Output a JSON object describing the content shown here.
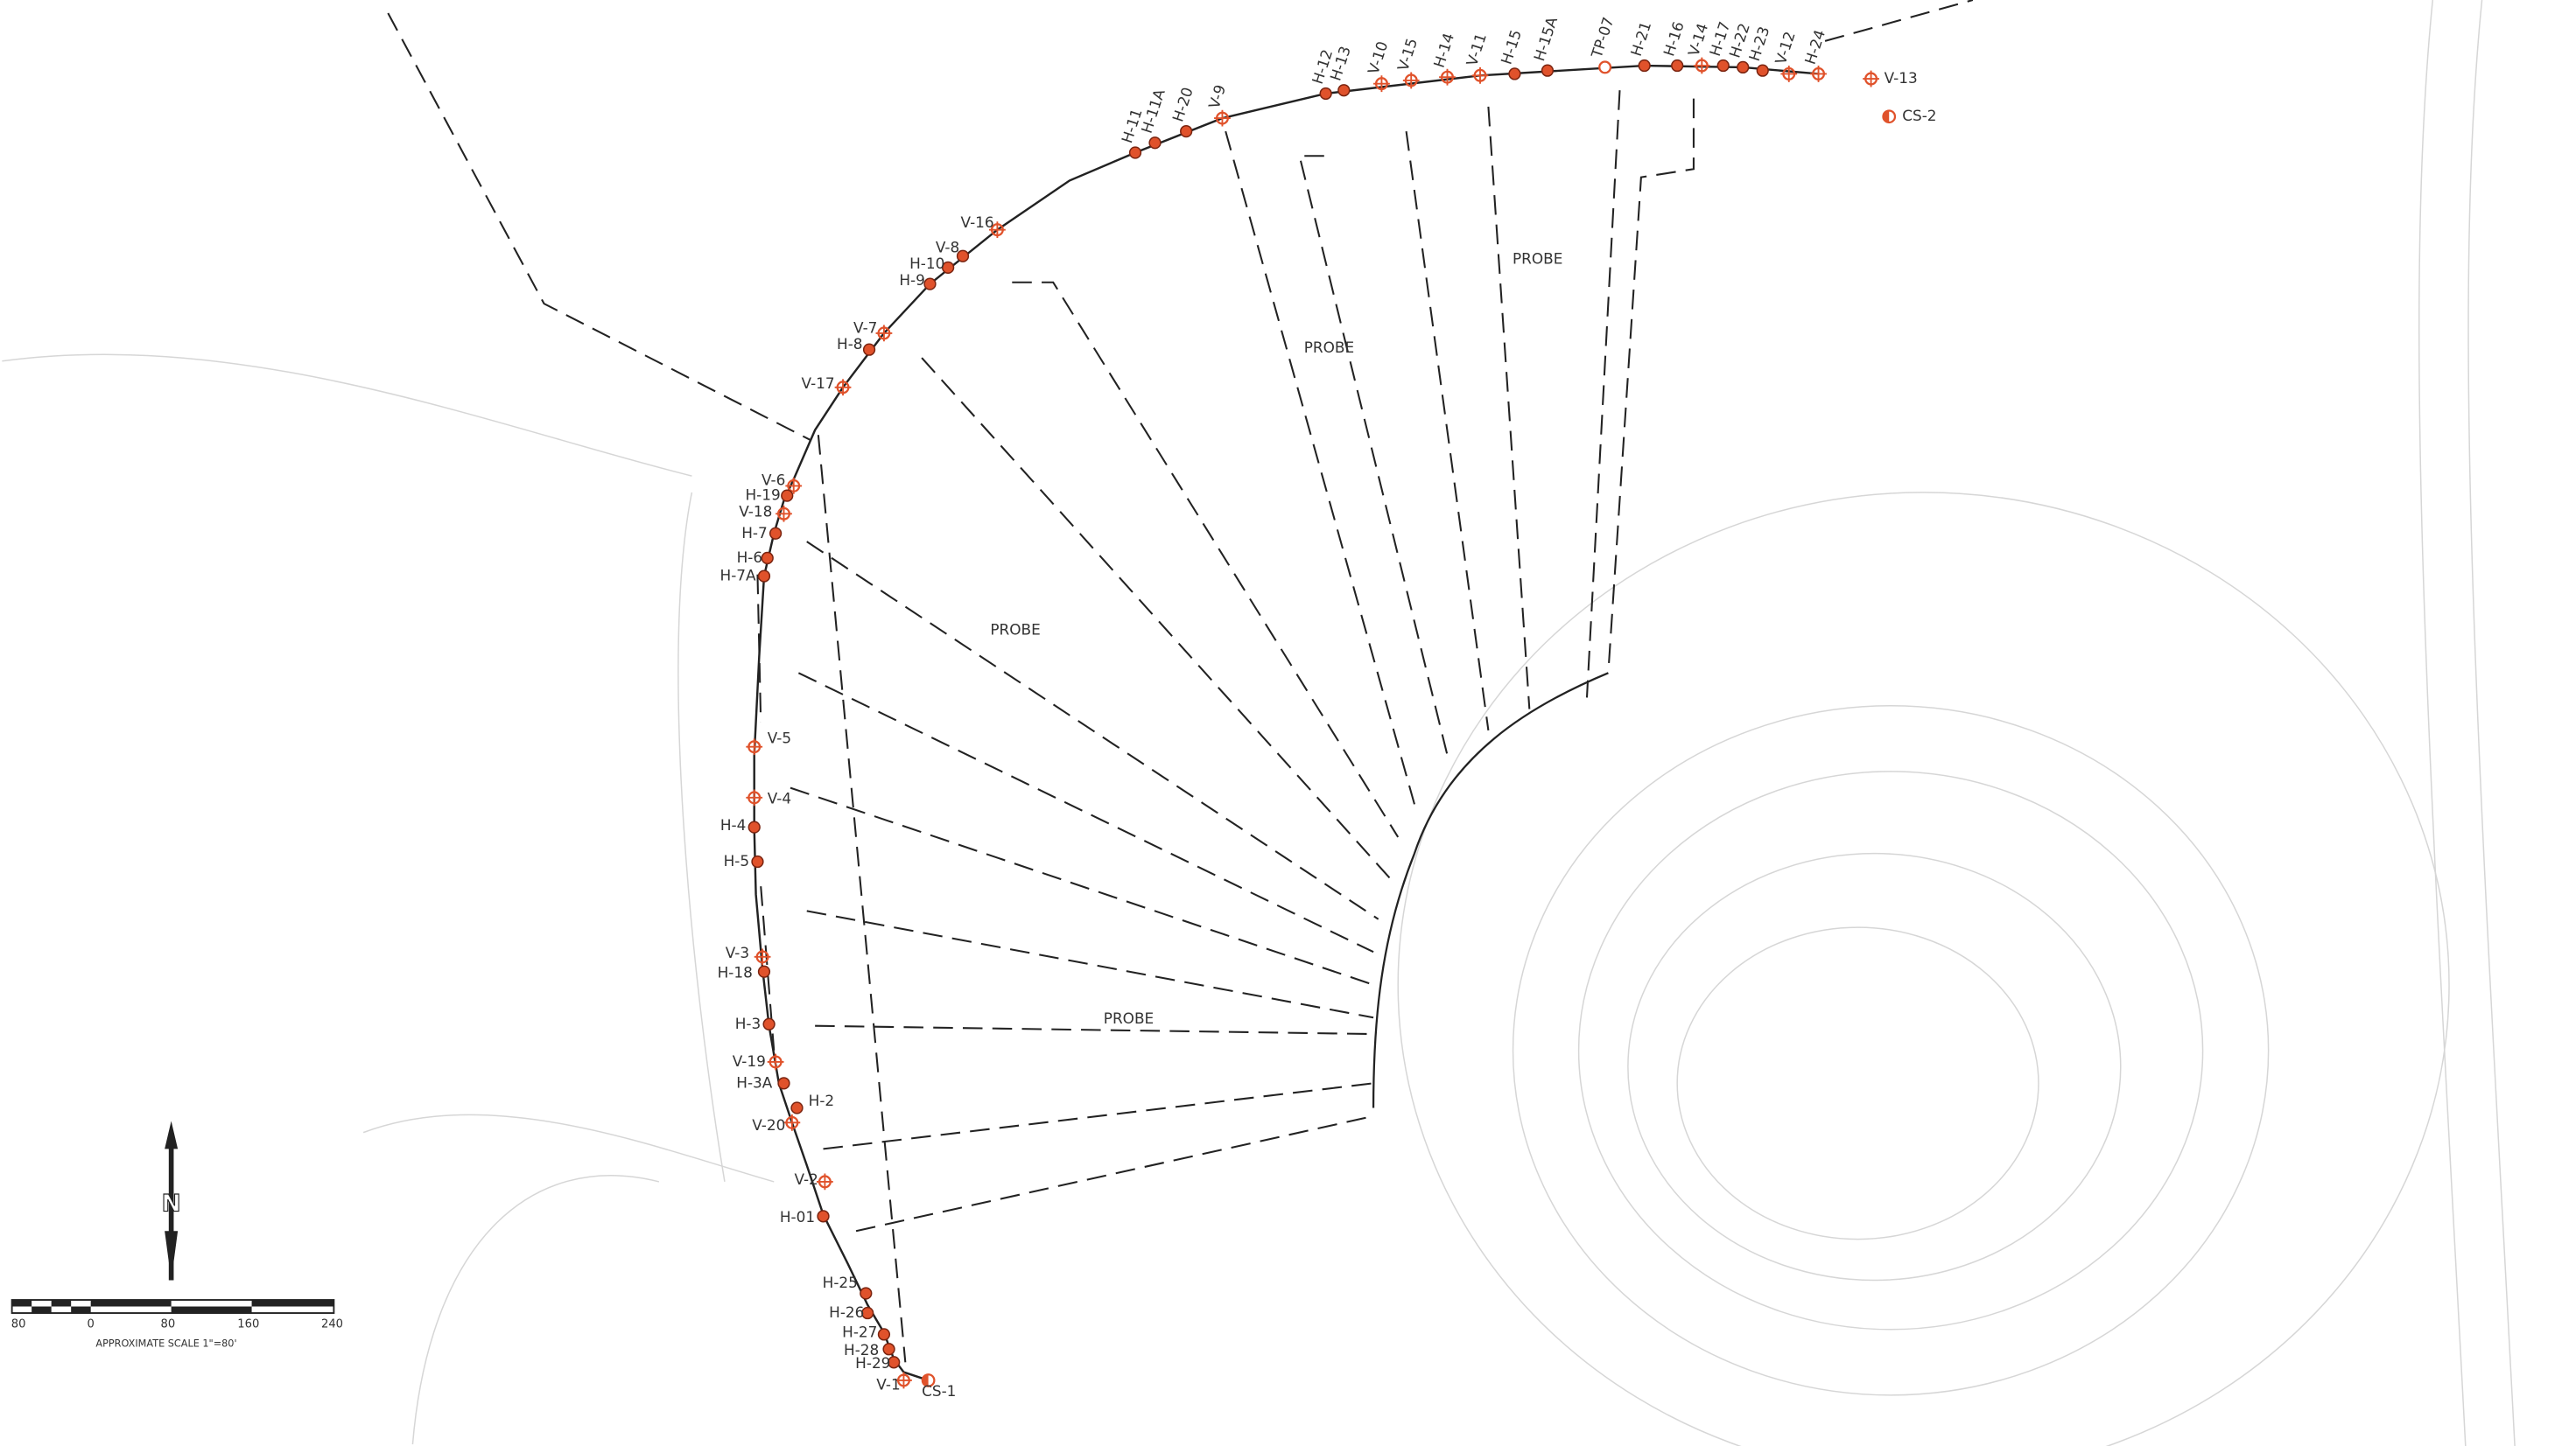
{
  "points": [
    {
      "label": "H-11"
    },
    {
      "label": "H-11A"
    },
    {
      "label": "H-20"
    },
    {
      "label": "V-9"
    },
    {
      "label": "H-12"
    },
    {
      "label": "H-13"
    },
    {
      "label": "V-10"
    },
    {
      "label": "V-15"
    },
    {
      "label": "H-14"
    },
    {
      "label": "V-11"
    },
    {
      "label": "H-15"
    },
    {
      "label": "H-15A"
    },
    {
      "label": "TP-07"
    },
    {
      "label": "H-21"
    },
    {
      "label": "H-16"
    },
    {
      "label": "V-14"
    },
    {
      "label": "H-17"
    },
    {
      "label": "H-22"
    },
    {
      "label": "H-23"
    },
    {
      "label": "V-12"
    },
    {
      "label": "H-24"
    },
    {
      "label": "V-13"
    },
    {
      "label": "CS-2"
    },
    {
      "label": "V-16"
    },
    {
      "label": "V-8"
    },
    {
      "label": "H-10"
    },
    {
      "label": "H-9"
    },
    {
      "label": "V-7"
    },
    {
      "label": "H-8"
    },
    {
      "label": "V-17"
    },
    {
      "label": "V-6"
    },
    {
      "label": "H-19"
    },
    {
      "label": "V-18"
    },
    {
      "label": "H-7"
    },
    {
      "label": "H-6"
    },
    {
      "label": "H-7A"
    },
    {
      "label": "V-5"
    },
    {
      "label": "V-4"
    },
    {
      "label": "H-4"
    },
    {
      "label": "H-5"
    },
    {
      "label": "V-3"
    },
    {
      "label": "H-18"
    },
    {
      "label": "H-3"
    },
    {
      "label": "V-19"
    },
    {
      "label": "H-3A"
    },
    {
      "label": "H-2"
    },
    {
      "label": "V-20"
    },
    {
      "label": "V-2"
    },
    {
      "label": "H-01"
    },
    {
      "label": "H-25"
    },
    {
      "label": "H-26"
    },
    {
      "label": "H-27"
    },
    {
      "label": "H-28"
    },
    {
      "label": "H-29"
    },
    {
      "label": "V-1"
    },
    {
      "label": "CS-1"
    }
  ],
  "probe_labels": [
    "PROBE",
    "PROBE",
    "PROBE",
    "PROBE"
  ],
  "north_label": "N",
  "scale": {
    "ticks": [
      "80",
      "0",
      "80",
      "160",
      "240"
    ],
    "caption": "APPROXIMATE SCALE 1\"=80'"
  }
}
